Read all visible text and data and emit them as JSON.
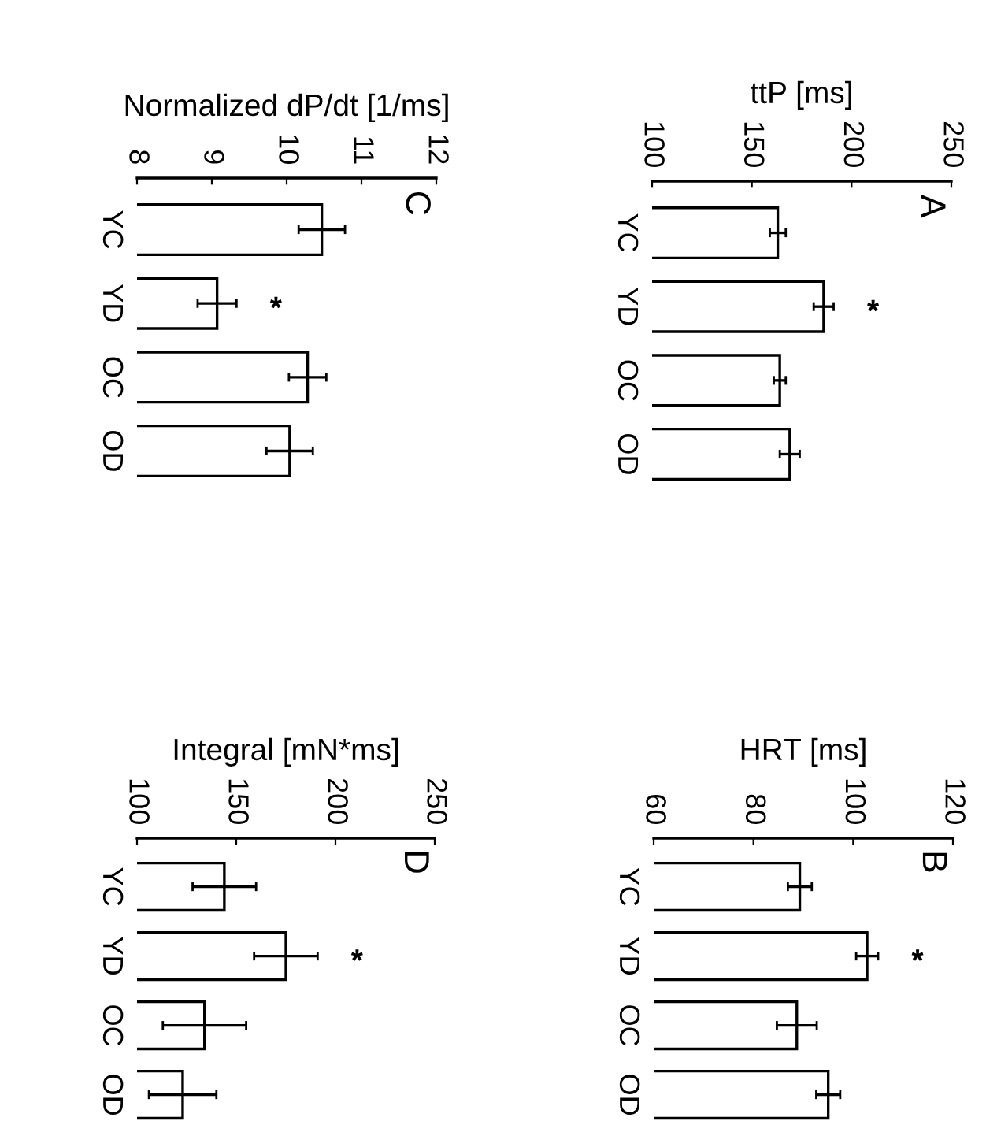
{
  "chart_data": [
    {
      "type": "bar",
      "orientation": "horizontal",
      "xlabel": "Normalized dP/dt [1/ms]",
      "categories": [
        "YC",
        "YD",
        "OC",
        "OD"
      ],
      "values": [
        10.47,
        9.07,
        10.28,
        10.04
      ],
      "errors": [
        0.31,
        0.26,
        0.25,
        0.31
      ],
      "color": "#ffffff",
      "xlim": [
        8,
        12
      ],
      "xticks": [
        8,
        9,
        10,
        11,
        12
      ],
      "annotations": [
        "C",
        {
          "text": "*",
          "x": 9.07,
          "y": "YD"
        }
      ]
    },
    {
      "type": "bar",
      "orientation": "horizontal",
      "xlabel": "ttP [ms]",
      "categories": [
        "YC",
        "YD",
        "OC",
        "OD"
      ],
      "values": [
        163,
        186,
        164,
        169
      ],
      "errors": [
        4,
        5,
        3,
        5
      ],
      "color": "#ffffff",
      "xlim": [
        100,
        250
      ],
      "xticks": [
        100,
        150,
        200,
        250
      ],
      "annotations": [
        "A",
        {
          "text": "*",
          "x": 186,
          "y": "YD"
        }
      ]
    },
    {
      "type": "bar",
      "orientation": "horizontal",
      "xlabel": "Integral [mN*ms]",
      "categories": [
        "YC",
        "YD",
        "OC",
        "OD"
      ],
      "values": [
        144,
        175,
        134,
        123
      ],
      "errors": [
        16,
        16,
        21,
        17
      ],
      "color": "#ffffff",
      "xlim": [
        100,
        250
      ],
      "xticks": [
        100,
        150,
        200,
        250
      ],
      "annotations": [
        "D",
        {
          "text": "*",
          "x": 175,
          "y": "YD"
        }
      ]
    },
    {
      "type": "bar",
      "orientation": "horizontal",
      "xlabel": "HRT [ms]",
      "categories": [
        "YC",
        "YD",
        "OC",
        "OD"
      ],
      "values": [
        89.3,
        102.8,
        88.7,
        95
      ],
      "errors": [
        2.4,
        2.2,
        4,
        2.4
      ],
      "color": "#ffffff",
      "xlim": [
        60,
        120
      ],
      "xticks": [
        60,
        80,
        100,
        120
      ],
      "annotations": [
        "B",
        {
          "text": "*",
          "x": 102.8,
          "y": "YD"
        }
      ]
    }
  ]
}
